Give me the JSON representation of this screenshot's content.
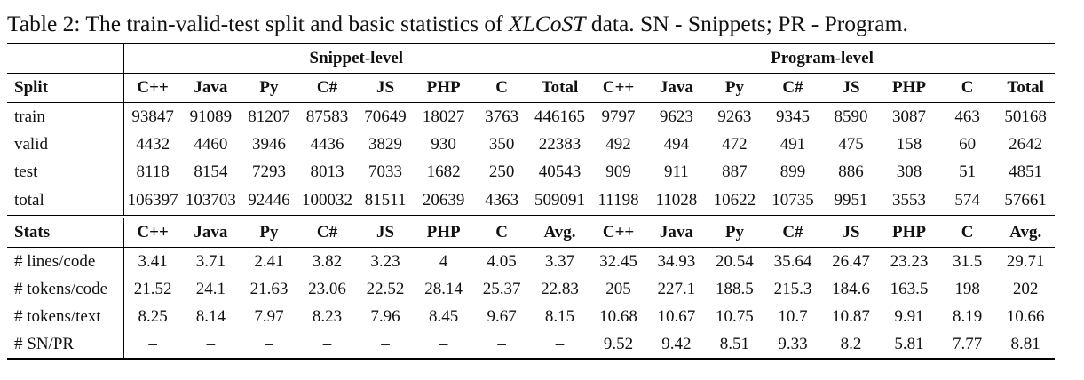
{
  "caption": {
    "prefix": "Table 2:",
    "text_before": "The train-valid-test split and basic statistics of",
    "dataset_name": "XLCoST",
    "text_after": "data. SN - Snippets; PR - Program."
  },
  "table": {
    "group_headers": [
      "Snippet-level",
      "Program-level"
    ],
    "split_header": {
      "label": "Split",
      "columns": [
        "C++",
        "Java",
        "Py",
        "C#",
        "JS",
        "PHP",
        "C",
        "Total",
        "C++",
        "Java",
        "Py",
        "C#",
        "JS",
        "PHP",
        "C",
        "Total"
      ]
    },
    "split_rows": [
      {
        "label": "train",
        "values": [
          "93847",
          "91089",
          "81207",
          "87583",
          "70649",
          "18027",
          "3763",
          "446165",
          "9797",
          "9623",
          "9263",
          "9345",
          "8590",
          "3087",
          "463",
          "50168"
        ]
      },
      {
        "label": "valid",
        "values": [
          "4432",
          "4460",
          "3946",
          "4436",
          "3829",
          "930",
          "350",
          "22383",
          "492",
          "494",
          "472",
          "491",
          "475",
          "158",
          "60",
          "2642"
        ]
      },
      {
        "label": "test",
        "values": [
          "8118",
          "8154",
          "7293",
          "8013",
          "7033",
          "1682",
          "250",
          "40543",
          "909",
          "911",
          "887",
          "899",
          "886",
          "308",
          "51",
          "4851"
        ]
      }
    ],
    "total_row": {
      "label": "total",
      "values": [
        "106397",
        "103703",
        "92446",
        "100032",
        "81511",
        "20639",
        "4363",
        "509091",
        "11198",
        "11028",
        "10622",
        "10735",
        "9951",
        "3553",
        "574",
        "57661"
      ]
    },
    "stats_header": {
      "label": "Stats",
      "columns": [
        "C++",
        "Java",
        "Py",
        "C#",
        "JS",
        "PHP",
        "C",
        "Avg.",
        "C++",
        "Java",
        "Py",
        "C#",
        "JS",
        "PHP",
        "C",
        "Avg."
      ]
    },
    "stats_rows": [
      {
        "label": "# lines/code",
        "values": [
          "3.41",
          "3.71",
          "2.41",
          "3.82",
          "3.23",
          "4",
          "4.05",
          "3.37",
          "32.45",
          "34.93",
          "20.54",
          "35.64",
          "26.47",
          "23.23",
          "31.5",
          "29.71"
        ]
      },
      {
        "label": "# tokens/code",
        "values": [
          "21.52",
          "24.1",
          "21.63",
          "23.06",
          "22.52",
          "28.14",
          "25.37",
          "22.83",
          "205",
          "227.1",
          "188.5",
          "215.3",
          "184.6",
          "163.5",
          "198",
          "202"
        ]
      },
      {
        "label": "# tokens/text",
        "values": [
          "8.25",
          "8.14",
          "7.97",
          "8.23",
          "7.96",
          "8.45",
          "9.67",
          "8.15",
          "10.68",
          "10.67",
          "10.75",
          "10.7",
          "10.87",
          "9.91",
          "8.19",
          "10.66"
        ]
      },
      {
        "label": "# SN/PR",
        "values": [
          "–",
          "–",
          "–",
          "–",
          "–",
          "–",
          "–",
          "–",
          "9.52",
          "9.42",
          "8.51",
          "9.33",
          "8.2",
          "5.81",
          "7.77",
          "8.81"
        ]
      }
    ]
  }
}
